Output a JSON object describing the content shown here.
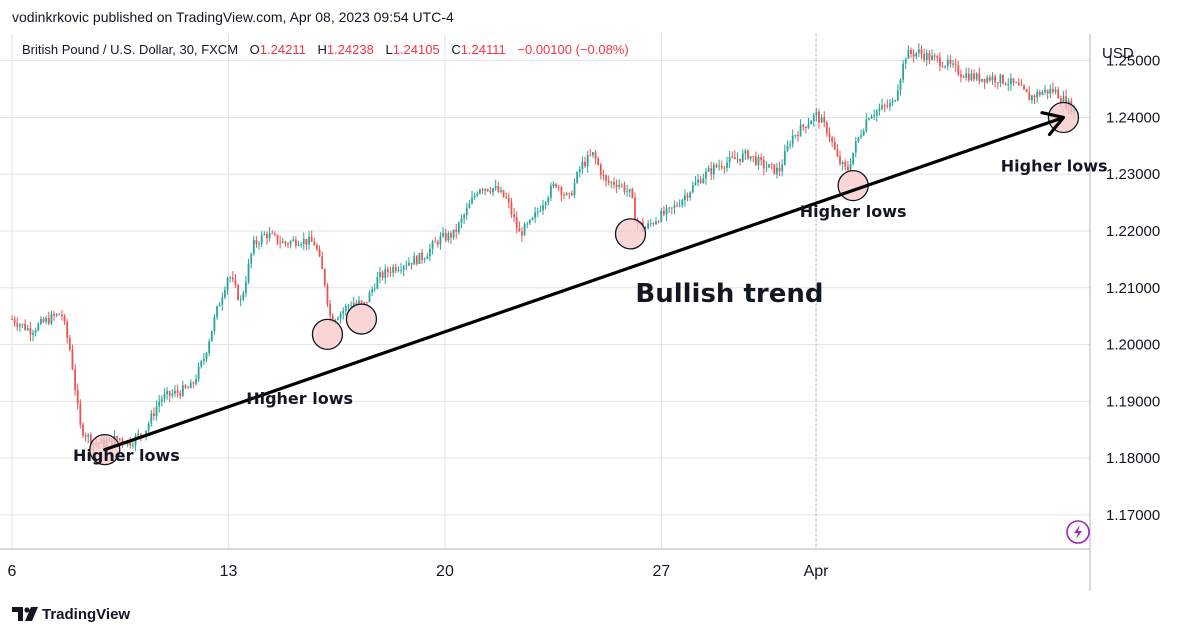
{
  "header": {
    "publisher_line": "vodinkrkovic published on TradingView.com, Apr 08, 2023 09:54 UTC-4"
  },
  "legend": {
    "symbol": "British Pound / U.S. Dollar, 30, FXCM",
    "open_label": "O",
    "open_value": "1.24211",
    "high_label": "H",
    "high_value": "1.24238",
    "low_label": "L",
    "low_value": "1.24105",
    "close_label": "C",
    "close_value": "1.24111",
    "change": "−0.00100 (−0.08%)"
  },
  "footer": {
    "brand": "TradingView"
  },
  "colors": {
    "up": "#26a69a",
    "down": "#ef5350",
    "legend_value": "#f23645",
    "grid": "#e0e3eb",
    "text": "#131722",
    "circle_fill": "#f8c8c8",
    "accent": "#9c27b0"
  },
  "icons": {
    "logo": "tradingview-logo-icon",
    "lightning": "lightning-icon"
  },
  "chart_data": {
    "type": "candlestick",
    "currency_label": "USD",
    "y_ticks": [
      "1.25000",
      "1.24000",
      "1.23000",
      "1.22000",
      "1.21000",
      "1.20000",
      "1.19000",
      "1.18000",
      "1.17000"
    ],
    "y_tick_values": [
      1.25,
      1.24,
      1.23,
      1.22,
      1.21,
      1.2,
      1.19,
      1.18,
      1.17
    ],
    "ylim": [
      1.164,
      1.2547
    ],
    "x_ticks": [
      "6",
      "13",
      "20",
      "27",
      "Apr"
    ],
    "x_tick_days": [
      6,
      13,
      20,
      27,
      32
    ],
    "xlim": [
      6,
      40.6
    ],
    "date_axis": "March 2023 day-of-month; Apr = 1 April",
    "grid": true,
    "price_path": [
      [
        6.0,
        1.2045
      ],
      [
        6.6,
        1.2025
      ],
      [
        7.2,
        1.2045
      ],
      [
        7.6,
        1.2055
      ],
      [
        7.9,
        1.1985
      ],
      [
        8.2,
        1.1855
      ],
      [
        8.6,
        1.1828
      ],
      [
        9.0,
        1.1825
      ],
      [
        9.4,
        1.1835
      ],
      [
        9.8,
        1.1828
      ],
      [
        10.3,
        1.1848
      ],
      [
        10.8,
        1.1905
      ],
      [
        11.3,
        1.1915
      ],
      [
        11.8,
        1.1925
      ],
      [
        12.2,
        1.1975
      ],
      [
        12.6,
        1.2055
      ],
      [
        13.0,
        1.2125
      ],
      [
        13.4,
        1.2075
      ],
      [
        13.8,
        1.2175
      ],
      [
        14.2,
        1.2195
      ],
      [
        14.8,
        1.2178
      ],
      [
        15.3,
        1.2185
      ],
      [
        15.8,
        1.2178
      ],
      [
        16.1,
        1.2115
      ],
      [
        16.3,
        1.2045
      ],
      [
        16.6,
        1.2055
      ],
      [
        17.0,
        1.2075
      ],
      [
        17.4,
        1.207
      ],
      [
        17.8,
        1.2115
      ],
      [
        18.3,
        1.2135
      ],
      [
        18.8,
        1.2145
      ],
      [
        19.3,
        1.2155
      ],
      [
        19.8,
        1.2185
      ],
      [
        20.3,
        1.2195
      ],
      [
        20.7,
        1.2235
      ],
      [
        21.1,
        1.2278
      ],
      [
        21.6,
        1.2275
      ],
      [
        22.0,
        1.2255
      ],
      [
        22.4,
        1.2195
      ],
      [
        22.8,
        1.2215
      ],
      [
        23.2,
        1.2255
      ],
      [
        23.6,
        1.2285
      ],
      [
        24.0,
        1.2255
      ],
      [
        24.4,
        1.2315
      ],
      [
        24.8,
        1.2335
      ],
      [
        25.2,
        1.2285
      ],
      [
        25.6,
        1.2285
      ],
      [
        26.0,
        1.2265
      ],
      [
        26.2,
        1.2215
      ],
      [
        26.5,
        1.2205
      ],
      [
        26.9,
        1.2225
      ],
      [
        27.3,
        1.2235
      ],
      [
        27.8,
        1.2265
      ],
      [
        28.3,
        1.2295
      ],
      [
        28.8,
        1.2315
      ],
      [
        29.3,
        1.2325
      ],
      [
        29.8,
        1.2335
      ],
      [
        30.3,
        1.2315
      ],
      [
        30.8,
        1.2305
      ],
      [
        31.2,
        1.2365
      ],
      [
        31.6,
        1.2385
      ],
      [
        32.0,
        1.2405
      ],
      [
        32.4,
        1.2375
      ],
      [
        32.7,
        1.2325
      ],
      [
        33.0,
        1.2305
      ],
      [
        33.3,
        1.2355
      ],
      [
        33.7,
        1.2405
      ],
      [
        34.1,
        1.2415
      ],
      [
        34.5,
        1.2425
      ],
      [
        34.9,
        1.251
      ],
      [
        35.3,
        1.2515
      ],
      [
        35.7,
        1.2505
      ],
      [
        36.2,
        1.2495
      ],
      [
        36.7,
        1.2478
      ],
      [
        37.2,
        1.247
      ],
      [
        37.7,
        1.247
      ],
      [
        38.1,
        1.2465
      ],
      [
        38.5,
        1.2455
      ],
      [
        38.9,
        1.2435
      ],
      [
        39.3,
        1.2445
      ],
      [
        39.7,
        1.2448
      ],
      [
        40.1,
        1.2425
      ],
      [
        40.4,
        1.2411
      ]
    ],
    "trend_line": {
      "from": [
        9.0,
        1.1815
      ],
      "to": [
        40.0,
        1.24
      ]
    },
    "higher_lows": [
      {
        "x": 9.0,
        "y": 1.1815,
        "label": "Higher lows",
        "label_at": [
          9.7,
          1.1795
        ]
      },
      {
        "x": 16.2,
        "y": 1.2018,
        "label": "Higher lows",
        "label_at": [
          15.3,
          1.1895
        ]
      },
      {
        "x": 17.3,
        "y": 1.2045,
        "label": null
      },
      {
        "x": 26.0,
        "y": 1.2195,
        "label": null
      },
      {
        "x": 33.2,
        "y": 1.228,
        "label": "Higher lows",
        "label_at": [
          33.2,
          1.2225
        ]
      },
      {
        "x": 40.0,
        "y": 1.24,
        "label": "Higher lows",
        "label_at": [
          39.7,
          1.2305
        ]
      }
    ],
    "annotation_title": "Bullish trend",
    "annotation_title_at": [
      29.2,
      1.2075
    ]
  }
}
